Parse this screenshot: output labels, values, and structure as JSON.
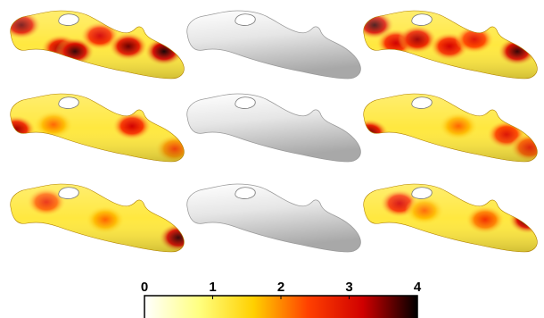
{
  "figure": {
    "rows": [
      {
        "panels": [
          {
            "rendering": "heatmap",
            "hot_spots": [
              [
                0.08,
                0.25,
                0.9
              ],
              [
                0.3,
                0.58,
                0.85
              ],
              [
                0.38,
                0.62,
                0.95
              ],
              [
                0.52,
                0.4,
                0.8
              ],
              [
                0.68,
                0.55,
                0.9
              ],
              [
                0.88,
                0.62,
                0.98
              ]
            ]
          },
          {
            "rendering": "plain"
          },
          {
            "rendering": "heatmap",
            "hot_spots": [
              [
                0.08,
                0.25,
                0.95
              ],
              [
                0.2,
                0.5,
                0.8
              ],
              [
                0.32,
                0.45,
                0.85
              ],
              [
                0.5,
                0.55,
                0.8
              ],
              [
                0.64,
                0.45,
                0.75
              ],
              [
                0.88,
                0.62,
                0.95
              ]
            ]
          }
        ]
      },
      {
        "panels": [
          {
            "rendering": "heatmap",
            "hot_spots": [
              [
                0.05,
                0.55,
                0.85
              ],
              [
                0.26,
                0.48,
                0.55
              ],
              [
                0.7,
                0.5,
                0.8
              ],
              [
                0.94,
                0.82,
                0.6
              ]
            ]
          },
          {
            "rendering": "plain"
          },
          {
            "rendering": "heatmap",
            "hot_spots": [
              [
                0.05,
                0.6,
                0.9
              ],
              [
                0.55,
                0.5,
                0.55
              ],
              [
                0.82,
                0.62,
                0.75
              ],
              [
                0.95,
                0.8,
                0.7
              ]
            ]
          }
        ]
      },
      {
        "panels": [
          {
            "rendering": "heatmap",
            "hot_spots": [
              [
                0.22,
                0.3,
                0.7
              ],
              [
                0.55,
                0.55,
                0.55
              ],
              [
                0.96,
                0.8,
                0.95
              ]
            ]
          },
          {
            "rendering": "plain"
          },
          {
            "rendering": "heatmap",
            "hot_spots": [
              [
                0.22,
                0.32,
                0.8
              ],
              [
                0.36,
                0.42,
                0.55
              ],
              [
                0.7,
                0.55,
                0.65
              ],
              [
                0.94,
                0.55,
                0.95
              ]
            ]
          }
        ]
      }
    ]
  },
  "colorbar": {
    "min": 0,
    "max": 4,
    "ticks": [
      "0",
      "1",
      "2",
      "3",
      "4"
    ],
    "colors": [
      "#ffffff",
      "#ffff80",
      "#ffd000",
      "#ff4000",
      "#d00000",
      "#000000"
    ],
    "plain_color": "#d8d8d8"
  }
}
